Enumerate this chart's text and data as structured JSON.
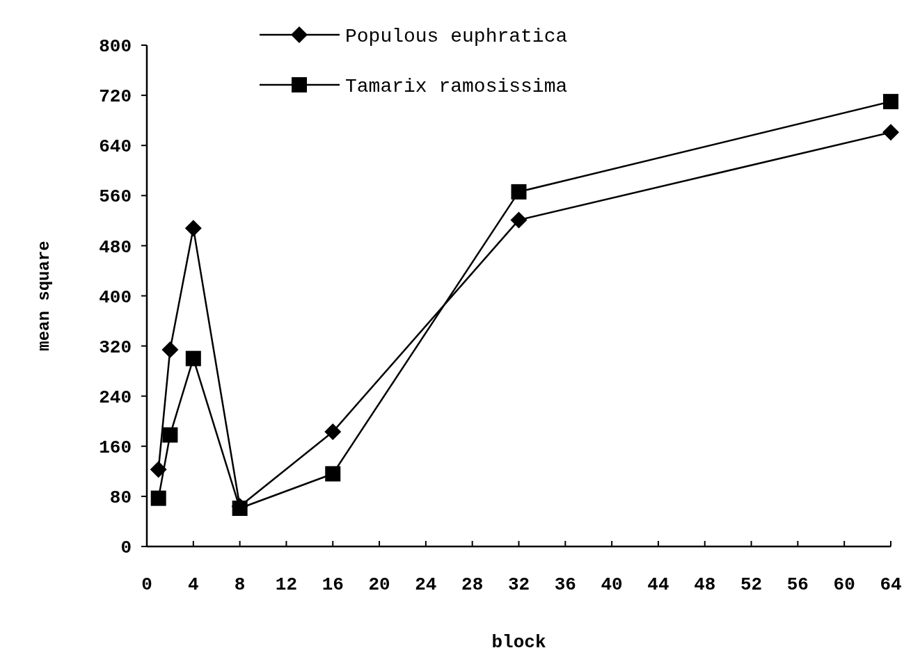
{
  "chart_data": {
    "type": "line",
    "xlabel": "block",
    "ylabel": "mean square",
    "xlim": [
      0,
      64
    ],
    "xticks": [
      0,
      4,
      8,
      12,
      16,
      20,
      24,
      28,
      32,
      36,
      40,
      44,
      48,
      52,
      56,
      60,
      64
    ],
    "ylim": [
      0,
      800
    ],
    "yticks": [
      0,
      80,
      160,
      240,
      320,
      400,
      480,
      560,
      640,
      720,
      800
    ],
    "x": [
      1,
      2,
      4,
      8,
      16,
      32,
      64
    ],
    "legend": "top",
    "grid": false,
    "line_style": "solid",
    "series": [
      {
        "name": "Populous euphratica",
        "color": "#000000",
        "marker": "diamond",
        "values": [
          123,
          314,
          508,
          64,
          183,
          521,
          661
        ]
      },
      {
        "name": "Tamarix ramosissima",
        "color": "#000000",
        "marker": "square",
        "values": [
          77,
          178,
          300,
          61,
          116,
          566,
          710
        ]
      }
    ]
  }
}
